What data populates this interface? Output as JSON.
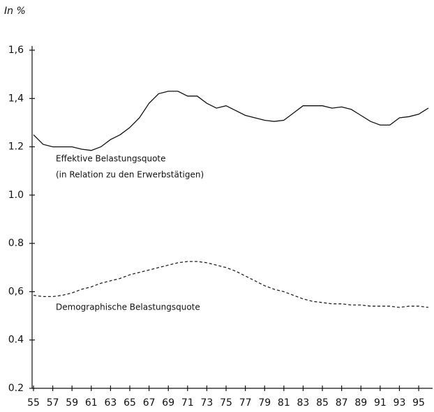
{
  "chart_data": {
    "type": "line",
    "y_label": "In %",
    "x": [
      55,
      56,
      57,
      58,
      59,
      60,
      61,
      62,
      63,
      64,
      65,
      66,
      67,
      68,
      69,
      70,
      71,
      72,
      73,
      74,
      75,
      76,
      77,
      78,
      79,
      80,
      81,
      82,
      83,
      84,
      85,
      86,
      87,
      88,
      89,
      90,
      91,
      92,
      93,
      94,
      95,
      96
    ],
    "series": [
      {
        "name": "Effektive Belastungsquote",
        "color": "#111111",
        "dash": false,
        "values": [
          1.25,
          1.21,
          1.2,
          1.2,
          1.2,
          1.19,
          1.185,
          1.2,
          1.23,
          1.25,
          1.28,
          1.32,
          1.38,
          1.42,
          1.43,
          1.43,
          1.41,
          1.41,
          1.38,
          1.36,
          1.37,
          1.35,
          1.33,
          1.32,
          1.31,
          1.305,
          1.31,
          1.34,
          1.37,
          1.37,
          1.37,
          1.36,
          1.365,
          1.355,
          1.33,
          1.305,
          1.29,
          1.29,
          1.32,
          1.325,
          1.335,
          1.36
        ]
      },
      {
        "name": "Demographische Belastungsquote",
        "color": "#222222",
        "dash": true,
        "values": [
          0.585,
          0.58,
          0.58,
          0.585,
          0.595,
          0.61,
          0.62,
          0.635,
          0.645,
          0.655,
          0.67,
          0.68,
          0.69,
          0.7,
          0.71,
          0.72,
          0.725,
          0.725,
          0.72,
          0.71,
          0.7,
          0.685,
          0.665,
          0.645,
          0.625,
          0.61,
          0.6,
          0.585,
          0.57,
          0.56,
          0.555,
          0.55,
          0.55,
          0.545,
          0.545,
          0.54,
          0.54,
          0.54,
          0.535,
          0.54,
          0.54,
          0.535
        ]
      }
    ],
    "annotation": "(in Relation zu den Erwerbstätigen)",
    "xlim": [
      55,
      96.3
    ],
    "xticks": [
      55,
      57,
      59,
      61,
      63,
      65,
      67,
      69,
      71,
      73,
      75,
      77,
      79,
      81,
      83,
      85,
      87,
      89,
      91,
      93,
      95
    ],
    "ylim": [
      0.2,
      1.6
    ],
    "yticks": [
      0.2,
      0.4,
      {
        "value": 0.6,
        "label": "0,6"
      },
      0.8,
      {
        "value": 1.0,
        "label": "1.0"
      },
      1.2,
      {
        "value": 1.4,
        "label": "1,4"
      },
      {
        "value": 1.6,
        "label": "1,6"
      }
    ]
  }
}
